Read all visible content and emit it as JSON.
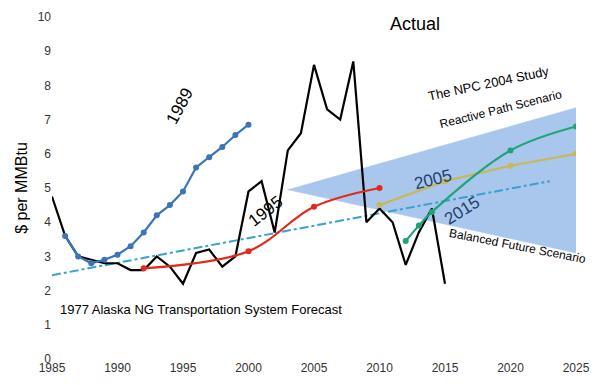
{
  "chart_data": {
    "type": "line",
    "ylabel": "$ per MMBtu",
    "xlim": [
      1985,
      2025
    ],
    "xticks": [
      1985,
      1990,
      1995,
      2000,
      2005,
      2010,
      2015,
      2020,
      2025
    ],
    "ylim": [
      0,
      10
    ],
    "yticks": [
      0,
      1,
      2,
      3,
      4,
      5,
      6,
      7,
      8,
      9,
      10
    ],
    "grid": false,
    "series": [
      {
        "name": "Reactive Path Scenario",
        "type": "line",
        "color": "#a9c6ec",
        "marker": "none",
        "line_style": "solid",
        "x": [
          2003,
          2025
        ],
        "values": [
          4.95,
          7.35
        ]
      },
      {
        "name": "Balanced Future Scenario",
        "type": "area",
        "color": "#a9c6ec",
        "marker": "none",
        "line_style": "solid",
        "x": [
          2003,
          2025
        ],
        "values": [
          4.95,
          3.1
        ]
      },
      {
        "name": "1977 Alaska NG Transportation System Forecast",
        "type": "line",
        "color": "#3aa0d0",
        "marker": "none",
        "line_style": "dashdot",
        "x": [
          1985,
          2023
        ],
        "values": [
          2.45,
          5.2
        ]
      },
      {
        "name": "Actual",
        "type": "line",
        "color": "#000000",
        "marker": "none",
        "line_style": "solid",
        "x": [
          1985,
          1986,
          1987,
          1988,
          1989,
          1990,
          1991,
          1992,
          1993,
          1994,
          1995,
          1996,
          1997,
          1998,
          1999,
          2000,
          2001,
          2002,
          2003,
          2004,
          2005,
          2006,
          2007,
          2008,
          2009,
          2010,
          2011,
          2012,
          2013,
          2014,
          2015
        ],
        "values": [
          4.75,
          3.6,
          3.0,
          2.9,
          2.8,
          2.8,
          2.6,
          2.6,
          3.0,
          2.7,
          2.2,
          3.1,
          3.2,
          2.7,
          3.0,
          4.9,
          5.2,
          3.7,
          6.1,
          6.6,
          8.6,
          7.3,
          7.0,
          8.7,
          4.0,
          4.4,
          4.0,
          2.75,
          3.7,
          4.4,
          2.2
        ]
      },
      {
        "name": "1989",
        "type": "line",
        "color": "#3b74b8",
        "marker": "circle",
        "line_style": "solid",
        "x": [
          1986,
          1987,
          1988,
          1989,
          1990,
          1991,
          1992,
          1993,
          1994,
          1995,
          1996,
          1997,
          1998,
          1999,
          2000
        ],
        "values": [
          3.6,
          3.0,
          2.8,
          2.9,
          3.05,
          3.3,
          3.7,
          4.2,
          4.5,
          4.9,
          5.6,
          5.9,
          6.2,
          6.55,
          6.85
        ]
      },
      {
        "name": "1995",
        "type": "line",
        "color": "#e02a1b",
        "marker": "circle",
        "line_style": "curved",
        "x": [
          1992,
          2000,
          2005,
          2010
        ],
        "values": [
          2.65,
          3.15,
          4.45,
          5.0
        ]
      },
      {
        "name": "2005",
        "type": "line",
        "color": "#c9b85a",
        "marker": "circle",
        "line_style": "solid",
        "x": [
          2010,
          2015,
          2020,
          2025
        ],
        "values": [
          4.5,
          5.2,
          5.65,
          6.0
        ]
      },
      {
        "name": "2015",
        "type": "line",
        "color": "#1fa37a",
        "marker": "circle",
        "line_style": "curved",
        "x": [
          2012,
          2013,
          2014,
          2020,
          2025
        ],
        "values": [
          3.45,
          3.9,
          4.3,
          6.1,
          6.8
        ]
      }
    ],
    "annotations": [
      {
        "text": "Actual",
        "x": 2012.7,
        "y": 9.8
      },
      {
        "text": "1989",
        "x": 1994.8,
        "y": 7.4
      },
      {
        "text": "1995",
        "x": 2001.3,
        "y": 4.3
      },
      {
        "text": "The NPC 2004 Study",
        "x": 2018.3,
        "y": 8.05
      },
      {
        "text": "Reactive Path Scenario",
        "x": 2019.3,
        "y": 7.3
      },
      {
        "text": "2005",
        "x": 2014.1,
        "y": 5.25
      },
      {
        "text": "2015",
        "x": 2016.3,
        "y": 4.35
      },
      {
        "text": "Balanced Future Scenario",
        "x": 2020.5,
        "y": 3.3
      },
      {
        "text": "1977 Alaska NG Transportation System Forecast",
        "x": 1996.4,
        "y": 1.45
      }
    ]
  }
}
